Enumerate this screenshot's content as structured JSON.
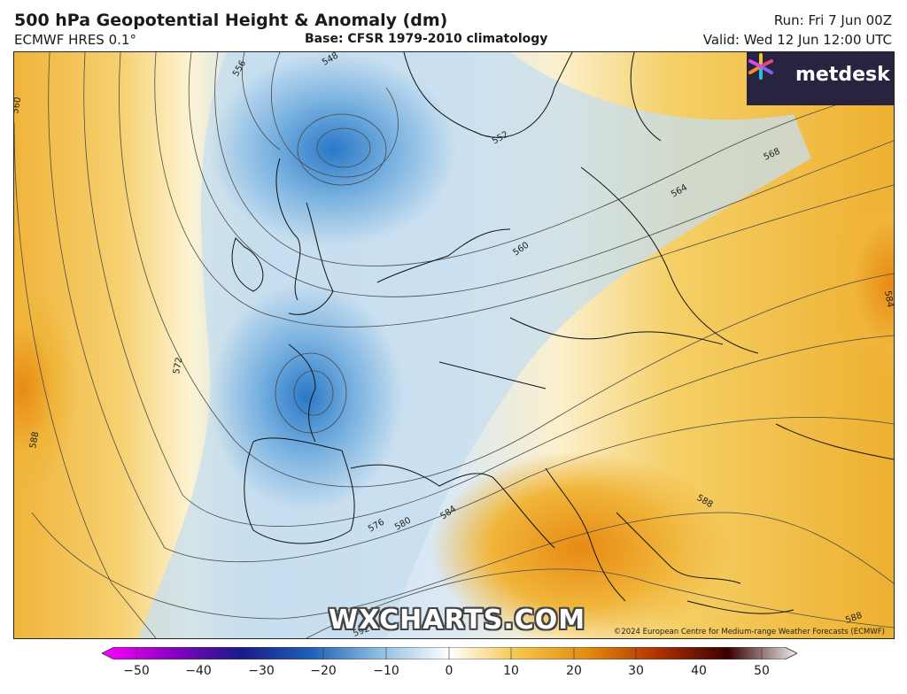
{
  "header": {
    "title": "500 hPa Geopotential Height & Anomaly (dm)",
    "model": "ECMWF HRES 0.1°",
    "base": "Base: CFSR 1979-2010 climatology",
    "run": "Run: Fri 7 Jun 00Z",
    "valid": "Valid: Wed 12 Jun 12:00 UTC"
  },
  "brand": {
    "logo_text": "metdesk",
    "logo_icon": "metdesk-star-icon"
  },
  "watermark": "WXCHARTS.COM",
  "copyright": "©2024 European Centre for Medium-range Weather Forecasts (ECMWF)",
  "contour_labels": [
    "556",
    "548",
    "560",
    "552",
    "568",
    "564",
    "572",
    "588",
    "584",
    "560",
    "576",
    "580",
    "588",
    "584",
    "592",
    "588"
  ],
  "colorbar": {
    "ticks": [
      "−50",
      "−40",
      "−30",
      "−20",
      "−10",
      "0",
      "10",
      "20",
      "30",
      "40",
      "50"
    ],
    "colors": [
      "#ff00ff",
      "#8a00c2",
      "#1a1a8a",
      "#1f5fb8",
      "#8fbfe0",
      "#ffffff",
      "#f3c54a",
      "#e28a10",
      "#b03000",
      "#3a0000",
      "#eeeeee"
    ]
  }
}
